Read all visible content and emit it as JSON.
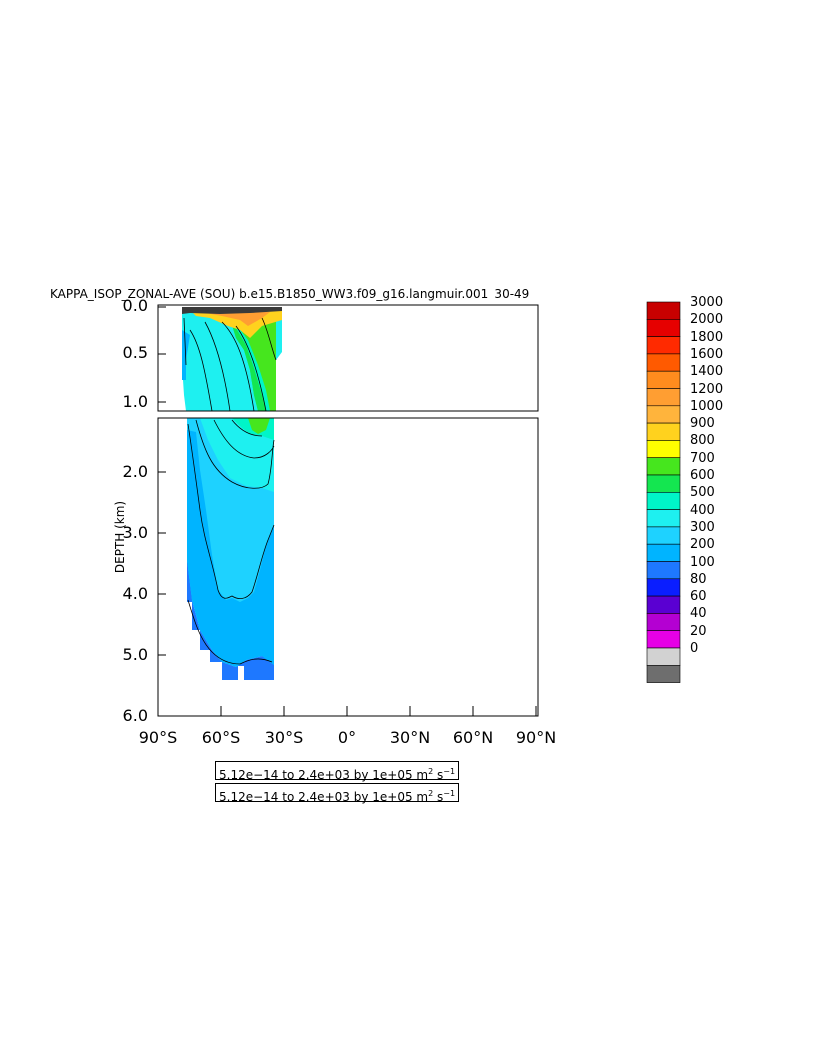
{
  "chart_data": {
    "type": "heatmap",
    "title": "KAPPA_ISOP_ZONAL-AVE (SOU) b.e15.B1850_WW3.f09_g16.langmuir.001  30-49",
    "ylabel": "DEPTH (km)",
    "xlabel": "",
    "x_ticks": [
      "90°S",
      "60°S",
      "30°S",
      "0°",
      "30°N",
      "60°N",
      "90°N"
    ],
    "x_values": [
      -90,
      -60,
      -30,
      0,
      30,
      60,
      90
    ],
    "xlim": [
      -90,
      90
    ],
    "y_ticks_upper": [
      "0.0",
      "0.5",
      "1.0"
    ],
    "y_ticks_lower": [
      "2.0",
      "3.0",
      "4.0",
      "5.0",
      "6.0"
    ],
    "ylim_upper": [
      0.0,
      1.1
    ],
    "ylim_lower": [
      1.1,
      6.0
    ],
    "colorbar": {
      "levels": [
        "3000",
        "2000",
        "1800",
        "1600",
        "1400",
        "1200",
        "1000",
        "900",
        "800",
        "700",
        "600",
        "500",
        "400",
        "300",
        "200",
        "100",
        "80",
        "60",
        "40",
        "20",
        "0"
      ],
      "colors": [
        "#c80000",
        "#e60000",
        "#ff2a00",
        "#ff5a00",
        "#ff8c1e",
        "#ff9e32",
        "#ffb43c",
        "#ffd21e",
        "#ffff00",
        "#46e61e",
        "#14e650",
        "#00f5c8",
        "#1ef0f0",
        "#1ed2ff",
        "#00b4ff",
        "#1e78ff",
        "#0a1eff",
        "#5a00d2",
        "#b400d2",
        "#e600e6",
        "#d2d2d2",
        "#6e6e6e"
      ]
    },
    "annotations": [
      "5.12e-14 to 2.4e+03 by 1e+05 m² s⁻¹",
      "5.12e-14 to 2.4e+03 by 1e+05 m² s⁻¹"
    ]
  },
  "labels": {
    "note_1_text": "5.12e−14 to 2.4e+03 by 1e+05 m",
    "note_2_text": "5.12e−14 to 2.4e+03 by 1e+05 m",
    "note_units_tail": "s",
    "note_sup_2": "2",
    "note_sup_neg1": "−1"
  }
}
